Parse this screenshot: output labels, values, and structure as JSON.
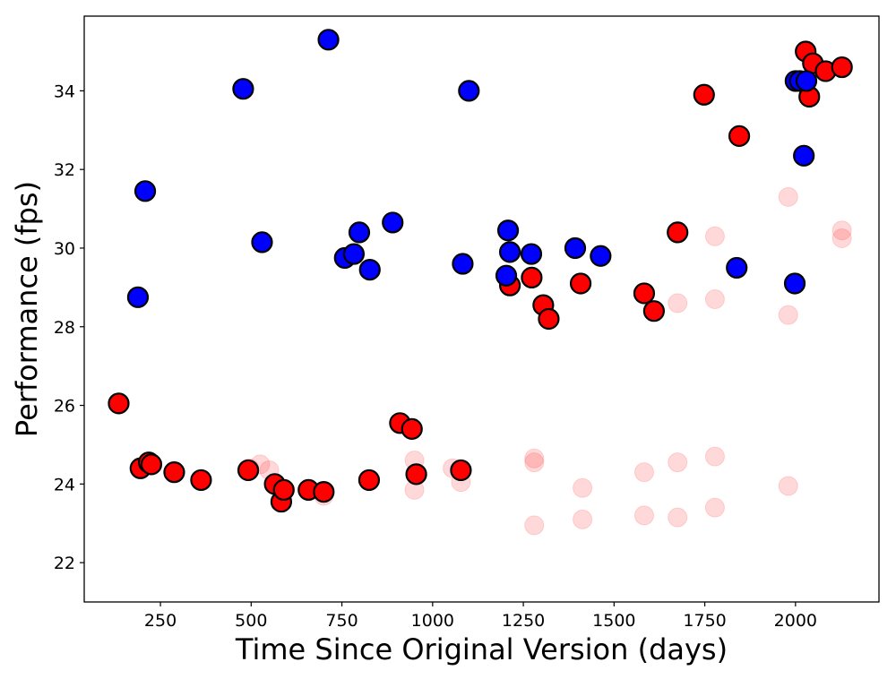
{
  "chart_data": {
    "type": "scatter",
    "title": "",
    "xlabel": "Time Since Original Version (days)",
    "ylabel": "Performance (fps)",
    "xlim": [
      40,
      2230
    ],
    "ylim": [
      21.0,
      35.9
    ],
    "xticks": [
      250,
      500,
      750,
      1000,
      1250,
      1500,
      1750,
      2000
    ],
    "yticks": [
      22,
      24,
      26,
      28,
      30,
      32,
      34
    ],
    "grid": false,
    "legend": "none",
    "series": [
      {
        "color": "#ff0000",
        "opacity": 0.15,
        "outline": false,
        "points": [
          [
            495,
            24.4
          ],
          [
            525,
            24.5
          ],
          [
            550,
            24.35
          ],
          [
            700,
            23.7
          ],
          [
            950,
            24.6
          ],
          [
            950,
            23.85
          ],
          [
            1055,
            24.4
          ],
          [
            1078,
            24.05
          ],
          [
            1280,
            24.55
          ],
          [
            1280,
            24.65
          ],
          [
            1280,
            22.95
          ],
          [
            1413,
            23.9
          ],
          [
            1413,
            23.1
          ],
          [
            1583,
            24.3
          ],
          [
            1583,
            23.2
          ],
          [
            1675,
            24.55
          ],
          [
            1675,
            23.15
          ],
          [
            1675,
            28.6
          ],
          [
            1778,
            24.7
          ],
          [
            1778,
            23.4
          ],
          [
            1778,
            28.7
          ],
          [
            1778,
            30.3
          ],
          [
            1980,
            23.95
          ],
          [
            1980,
            28.3
          ],
          [
            1980,
            31.3
          ],
          [
            2128,
            30.45
          ],
          [
            2128,
            30.25
          ]
        ]
      },
      {
        "color": "#ff0000",
        "opacity": 1,
        "outline": true,
        "points": [
          [
            135,
            26.05
          ],
          [
            195,
            24.4
          ],
          [
            218,
            24.55
          ],
          [
            225,
            24.5
          ],
          [
            288,
            24.3
          ],
          [
            362,
            24.1
          ],
          [
            492,
            24.35
          ],
          [
            565,
            24.0
          ],
          [
            583,
            23.55
          ],
          [
            590,
            23.85
          ],
          [
            658,
            23.85
          ],
          [
            700,
            23.8
          ],
          [
            825,
            24.1
          ],
          [
            910,
            25.55
          ],
          [
            943,
            25.4
          ],
          [
            955,
            24.25
          ],
          [
            1078,
            24.35
          ],
          [
            1213,
            29.05
          ],
          [
            1273,
            29.25
          ],
          [
            1305,
            28.55
          ],
          [
            1320,
            28.2
          ],
          [
            1408,
            29.1
          ],
          [
            1583,
            28.85
          ],
          [
            1610,
            28.4
          ],
          [
            1675,
            30.4
          ],
          [
            1748,
            33.9
          ],
          [
            1845,
            32.85
          ],
          [
            2028,
            35.0
          ],
          [
            2038,
            33.85
          ],
          [
            2048,
            34.7
          ],
          [
            2083,
            34.5
          ],
          [
            2128,
            34.6
          ]
        ]
      },
      {
        "color": "#0000ff",
        "opacity": 1,
        "outline": true,
        "points": [
          [
            188,
            28.75
          ],
          [
            208,
            31.45
          ],
          [
            478,
            34.05
          ],
          [
            530,
            30.15
          ],
          [
            713,
            35.3
          ],
          [
            758,
            29.75
          ],
          [
            783,
            29.85
          ],
          [
            798,
            30.4
          ],
          [
            827,
            29.45
          ],
          [
            890,
            30.65
          ],
          [
            1083,
            29.6
          ],
          [
            1100,
            34.0
          ],
          [
            1203,
            29.3
          ],
          [
            1208,
            30.45
          ],
          [
            1213,
            29.9
          ],
          [
            1272,
            29.85
          ],
          [
            1393,
            30.0
          ],
          [
            1463,
            29.8
          ],
          [
            1838,
            29.5
          ],
          [
            1998,
            29.1
          ],
          [
            2000,
            34.25
          ],
          [
            2012,
            34.25
          ],
          [
            2023,
            32.35
          ],
          [
            2030,
            34.25
          ]
        ]
      }
    ]
  }
}
